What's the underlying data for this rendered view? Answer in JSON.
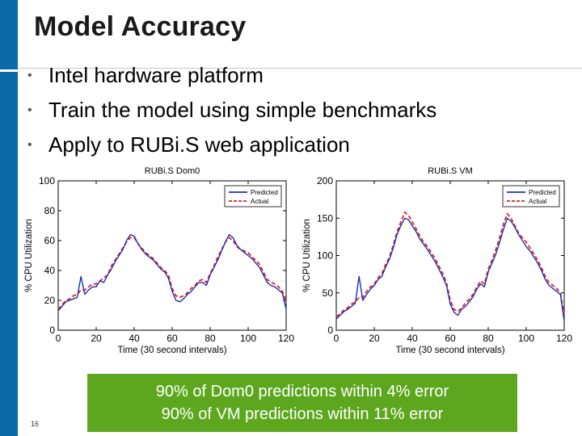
{
  "slide": {
    "title": "Model Accuracy",
    "bullets": [
      "Intel hardware platform",
      "Train the model using simple benchmarks",
      "Apply to RUBi.S web application"
    ],
    "callout": [
      "90% of Dom0 predictions within 4% error",
      "90% of VM predictions within 11% error"
    ],
    "page_number": "16"
  },
  "colors": {
    "accent_bar": "#0b6aa8",
    "callout_bg": "#5da71f",
    "predicted": "#1f2fb0",
    "actual": "#e02020"
  },
  "chart_data": [
    {
      "type": "line",
      "title": "RUBi.S Dom0",
      "xlabel": "Time (30 second intervals)",
      "ylabel": "% CPU Utilization",
      "xlim": [
        0,
        120
      ],
      "ylim": [
        0,
        100
      ],
      "xticks": [
        0,
        20,
        40,
        60,
        80,
        100,
        120
      ],
      "yticks": [
        0,
        20,
        40,
        60,
        80,
        100
      ],
      "legend_position": "top-right",
      "x": [
        0,
        2,
        4,
        6,
        8,
        10,
        12,
        14,
        16,
        18,
        20,
        22,
        24,
        26,
        28,
        30,
        32,
        34,
        36,
        38,
        40,
        42,
        44,
        46,
        48,
        50,
        52,
        54,
        56,
        58,
        60,
        62,
        64,
        66,
        68,
        70,
        72,
        74,
        76,
        78,
        80,
        82,
        84,
        86,
        88,
        90,
        92,
        94,
        96,
        98,
        100,
        102,
        104,
        106,
        108,
        110,
        112,
        114,
        116,
        118,
        120
      ],
      "series": [
        {
          "name": "Predicted",
          "color": "#1f2fb0",
          "style": "solid",
          "values": [
            13,
            16,
            19,
            20,
            21,
            22,
            36,
            24,
            27,
            29,
            29,
            33,
            32,
            37,
            41,
            46,
            50,
            54,
            60,
            64,
            63,
            58,
            54,
            51,
            49,
            47,
            44,
            41,
            39,
            35,
            26,
            20,
            19,
            21,
            24,
            26,
            29,
            32,
            32,
            30,
            37,
            42,
            47,
            53,
            59,
            64,
            62,
            57,
            54,
            52,
            50,
            48,
            45,
            42,
            37,
            32,
            30,
            29,
            27,
            25,
            14
          ]
        },
        {
          "name": "Actual",
          "color": "#e02020",
          "style": "dashed",
          "values": [
            14,
            17,
            20,
            21,
            23,
            24,
            27,
            27,
            29,
            31,
            31,
            33,
            35,
            37,
            43,
            47,
            51,
            55,
            59,
            62,
            62,
            58,
            55,
            52,
            50,
            48,
            45,
            42,
            40,
            37,
            28,
            23,
            22,
            23,
            25,
            28,
            30,
            33,
            34,
            32,
            38,
            43,
            49,
            54,
            59,
            62,
            60,
            56,
            54,
            53,
            52,
            49,
            47,
            44,
            39,
            34,
            32,
            31,
            29,
            26,
            20
          ]
        }
      ]
    },
    {
      "type": "line",
      "title": "RUBi.S VM",
      "xlabel": "Time (30 second intervals)",
      "ylabel": "% CPU Utilization",
      "xlim": [
        0,
        120
      ],
      "ylim": [
        0,
        200
      ],
      "xticks": [
        0,
        20,
        40,
        60,
        80,
        100,
        120
      ],
      "yticks": [
        0,
        50,
        100,
        150,
        200
      ],
      "legend_position": "top-right",
      "x": [
        0,
        2,
        4,
        6,
        8,
        10,
        12,
        14,
        16,
        18,
        20,
        22,
        24,
        26,
        28,
        30,
        32,
        34,
        36,
        38,
        40,
        42,
        44,
        46,
        48,
        50,
        52,
        54,
        56,
        58,
        60,
        62,
        64,
        66,
        68,
        70,
        72,
        74,
        76,
        78,
        80,
        82,
        84,
        86,
        88,
        90,
        92,
        94,
        96,
        98,
        100,
        102,
        104,
        106,
        108,
        110,
        112,
        114,
        116,
        118,
        120
      ],
      "series": [
        {
          "name": "Predicted",
          "color": "#1f2fb0",
          "style": "solid",
          "values": [
            15,
            20,
            25,
            28,
            32,
            36,
            72,
            40,
            48,
            55,
            60,
            68,
            72,
            85,
            95,
            110,
            128,
            140,
            150,
            148,
            140,
            132,
            122,
            115,
            108,
            100,
            92,
            82,
            72,
            60,
            35,
            24,
            20,
            28,
            32,
            38,
            45,
            55,
            62,
            58,
            78,
            90,
            102,
            118,
            135,
            150,
            146,
            138,
            128,
            120,
            112,
            106,
            98,
            90,
            80,
            68,
            60,
            56,
            52,
            48,
            12
          ]
        },
        {
          "name": "Actual",
          "color": "#e02020",
          "style": "dashed",
          "values": [
            18,
            22,
            27,
            30,
            35,
            38,
            44,
            44,
            52,
            58,
            62,
            70,
            76,
            88,
            98,
            114,
            132,
            145,
            158,
            154,
            145,
            136,
            126,
            118,
            112,
            104,
            96,
            86,
            76,
            64,
            40,
            28,
            25,
            30,
            36,
            42,
            48,
            58,
            66,
            62,
            82,
            94,
            108,
            124,
            142,
            156,
            150,
            140,
            130,
            124,
            118,
            110,
            102,
            94,
            84,
            72,
            64,
            60,
            56,
            50,
            20
          ]
        }
      ]
    }
  ]
}
